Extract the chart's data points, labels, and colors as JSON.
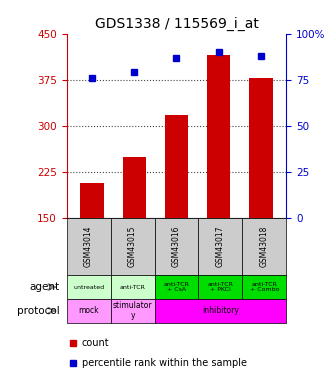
{
  "title": "GDS1338 / 115569_i_at",
  "samples": [
    "GSM43014",
    "GSM43015",
    "GSM43016",
    "GSM43017",
    "GSM43018"
  ],
  "counts": [
    207,
    248,
    318,
    415,
    378
  ],
  "percentile_ranks": [
    76,
    79,
    87,
    90,
    88
  ],
  "ylim_left": [
    150,
    450
  ],
  "ylim_right": [
    0,
    100
  ],
  "yticks_left": [
    150,
    225,
    300,
    375,
    450
  ],
  "yticks_right": [
    0,
    25,
    50,
    75,
    100
  ],
  "bar_color": "#cc0000",
  "dot_color": "#0000cc",
  "agent_labels": [
    "untreated",
    "anti-TCR",
    "anti-TCR\n+ CsA",
    "anti-TCR\n+ PKCi",
    "anti-TCR\n+ Combo"
  ],
  "agent_colors_light": [
    "#ccffcc",
    "#ccffcc"
  ],
  "agent_colors_dark": [
    "#00dd00",
    "#00dd00",
    "#00dd00"
  ],
  "protocol_mock_color": "#ff99ff",
  "protocol_stim_color": "#ff99ff",
  "protocol_inhib_color": "#ff00ff",
  "sample_bg_color": "#cccccc",
  "left_tick_color": "#cc0000",
  "right_tick_color": "#0000cc",
  "grid_color": "#444444"
}
